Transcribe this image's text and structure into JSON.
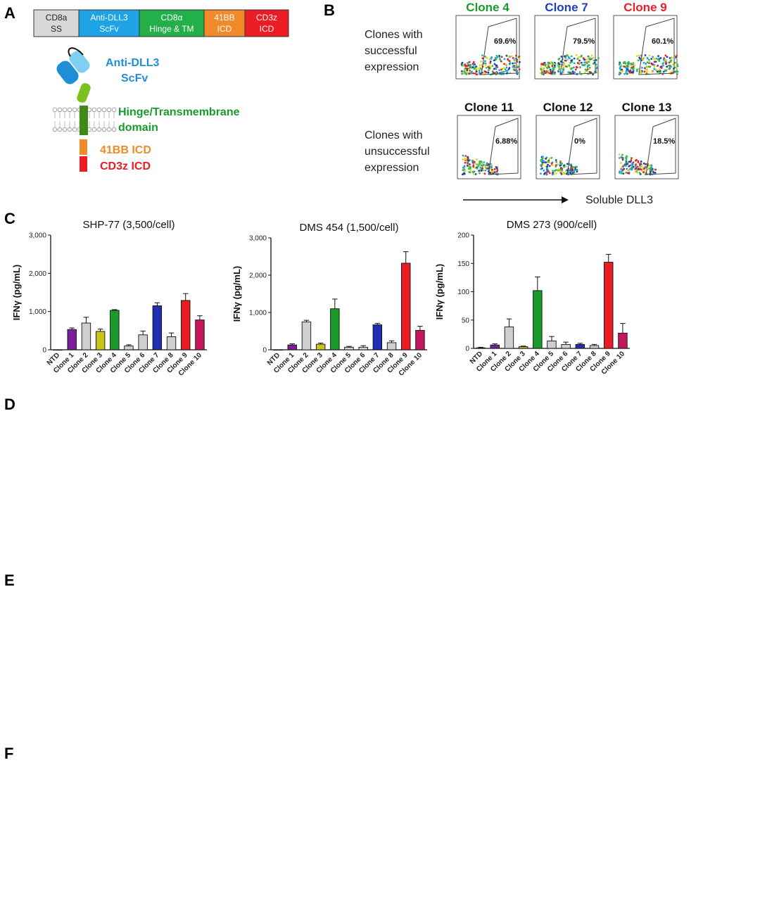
{
  "panels": {
    "A": {
      "letter": "A",
      "blocks": [
        {
          "line1": "CD8a",
          "line2": "SS",
          "color": "#d8d8d8",
          "text_color": "#222222"
        },
        {
          "line1": "Anti-DLL3",
          "line2": "ScFv",
          "color": "#1ea3e6",
          "text_color": "#ffffff"
        },
        {
          "line1": "CD8α",
          "line2": "Hinge & TM",
          "color": "#23b04a",
          "text_color": "#ffffff"
        },
        {
          "line1": "41BB",
          "line2": "ICD",
          "color": "#f08a2a",
          "text_color": "#ffffff"
        },
        {
          "line1": "CD3z",
          "line2": "ICD",
          "color": "#ec1c24",
          "text_color": "#ffffff"
        }
      ],
      "labels": {
        "scfv_line1": "Anti-DLL3",
        "scfv_line2": "ScFv",
        "hinge_line1": "Hinge/Transmembrane",
        "hinge_line2": "domain",
        "bb41": "41BB ICD",
        "cd3z": "CD3z ICD"
      }
    },
    "B": {
      "letter": "B",
      "row1_label": [
        "Clones with",
        "successful",
        "expression"
      ],
      "row2_label": [
        "Clones with",
        "unsuccessful",
        "expression"
      ],
      "row1": [
        {
          "name": "Clone 4",
          "pct": "69.6%",
          "color": "#1a9a2a"
        },
        {
          "name": "Clone 7",
          "pct": "79.5%",
          "color": "#1f3fb8"
        },
        {
          "name": "Clone 9",
          "pct": "60.1%",
          "color": "#e8202a"
        }
      ],
      "row2": [
        {
          "name": "Clone 11",
          "pct": "6.88%",
          "color": "#111111"
        },
        {
          "name": "Clone 12",
          "pct": "0%",
          "color": "#111111"
        },
        {
          "name": "Clone 13",
          "pct": "18.5%",
          "color": "#111111"
        }
      ],
      "xlabel": "Soluble DLL3"
    },
    "C": {
      "letter": "C"
    },
    "D": {
      "letter": "D"
    },
    "E": {
      "letter": "E"
    },
    "F": {
      "letter": "F"
    }
  },
  "bar_colors": {
    "NTD": "#ffffff",
    "Clone 1": "#7a1e9a",
    "Clone 2": "#cfcfcf",
    "Clone 3": "#c8c41a",
    "Clone 4": "#1a9a2a",
    "Clone 5": "#cfcfcf",
    "Clone 6": "#cfcfcf",
    "Clone 7": "#1f2fb0",
    "Clone 8": "#cfcfcf",
    "Clone 9": "#ec1c24",
    "Clone 10": "#c2185b"
  },
  "chart_data": [
    {
      "panel": "C",
      "type": "bar",
      "title": "SHP-77 (3,500/cell)",
      "ylabel": "IFNγ (pg/mL)",
      "ylim": [
        0,
        3000
      ],
      "yticks": [
        "0",
        "1,000",
        "2,000",
        "3,000"
      ],
      "ytick_values": [
        0,
        1000,
        2000,
        3000
      ],
      "categories": [
        "NTD",
        "Clone 1",
        "Clone 2",
        "Clone 3",
        "Clone 4",
        "Clone 5",
        "Clone 6",
        "Clone 7",
        "Clone 8",
        "Clone 9",
        "Clone 10"
      ],
      "values": [
        0,
        530,
        700,
        480,
        1030,
        100,
        390,
        1150,
        340,
        1290,
        780
      ],
      "errors": [
        0,
        40,
        150,
        60,
        20,
        30,
        100,
        80,
        100,
        180,
        110
      ]
    },
    {
      "panel": "C",
      "type": "bar",
      "title": "DMS 454 (1,500/cell)",
      "ylabel": "IFNγ (pg/mL)",
      "ylim": [
        0,
        3000
      ],
      "yticks": [
        "0",
        "1,000",
        "2,000",
        "3,000"
      ],
      "ytick_values": [
        0,
        1000,
        2000,
        3000
      ],
      "categories": [
        "NTD",
        "Clone 1",
        "Clone 2",
        "Clone 3",
        "Clone 4",
        "Clone 5",
        "Clone 6",
        "Clone 7",
        "Clone 8",
        "Clone 9",
        "Clone 10"
      ],
      "values": [
        0,
        130,
        750,
        150,
        1100,
        70,
        70,
        670,
        190,
        2320,
        520
      ],
      "errors": [
        0,
        30,
        40,
        30,
        260,
        20,
        40,
        40,
        50,
        310,
        110
      ]
    },
    {
      "panel": "C",
      "type": "bar",
      "title": "DMS 273 (900/cell)",
      "ylabel": "IFNγ (pg/mL)",
      "ylim": [
        0,
        200
      ],
      "yticks": [
        "0",
        "50",
        "100",
        "150",
        "200"
      ],
      "ytick_values": [
        0,
        50,
        100,
        150,
        200
      ],
      "categories": [
        "NTD",
        "Clone 1",
        "Clone 2",
        "Clone 3",
        "Clone 4",
        "Clone 5",
        "Clone 6",
        "Clone 7",
        "Clone 8",
        "Clone 9",
        "Clone 10"
      ],
      "values": [
        1,
        6,
        38,
        3,
        102,
        13,
        7,
        7,
        5,
        152,
        27
      ],
      "errors": [
        1,
        2,
        14,
        1,
        24,
        8,
        4,
        2,
        2,
        14,
        17
      ]
    }
  ]
}
